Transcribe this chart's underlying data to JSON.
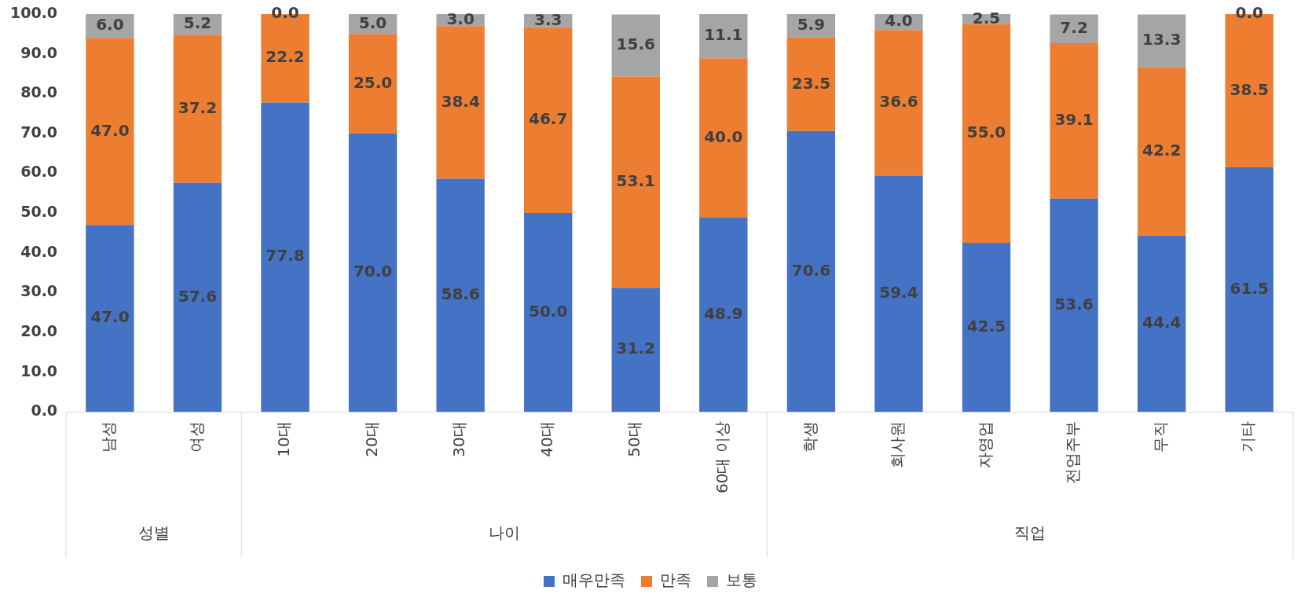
{
  "chart_data": {
    "type": "bar",
    "stacked": true,
    "categories": [
      "남성",
      "여성",
      "10대",
      "20대",
      "30대",
      "40대",
      "50대",
      "60대 이상",
      "학생",
      "회사원",
      "자영업",
      "전업주부",
      "무직",
      "기타"
    ],
    "series": [
      {
        "name": "매우만족",
        "color": "#4472c4",
        "values": [
          47.0,
          57.6,
          77.8,
          70.0,
          58.6,
          50.0,
          31.2,
          48.9,
          70.6,
          59.4,
          42.5,
          53.6,
          44.4,
          61.5
        ],
        "value_labels": [
          "47.0",
          "57.6",
          "77.8",
          "70.0",
          "58.6",
          "50.0",
          "31.2",
          "48.9",
          "70.6",
          "59.4",
          "42.5",
          "53.6",
          "44.4",
          "61.5"
        ]
      },
      {
        "name": "만족",
        "color": "#ed7d31",
        "values": [
          47.0,
          37.2,
          22.2,
          25.0,
          38.4,
          46.7,
          53.1,
          40.0,
          23.5,
          36.6,
          55.0,
          39.1,
          42.2,
          38.5
        ],
        "value_labels": [
          "47.0",
          "37.2",
          "22.2",
          "25.0",
          "38.4",
          "46.7",
          "53.1",
          "40.0",
          "23.5",
          "36.6",
          "55.0",
          "39.1",
          "42.2",
          "38.5"
        ]
      },
      {
        "name": "보통",
        "color": "#a5a5a5",
        "values": [
          6.0,
          5.2,
          0.0,
          5.0,
          3.0,
          3.3,
          15.6,
          11.1,
          5.9,
          4.0,
          2.5,
          7.2,
          13.3,
          0.0
        ],
        "value_labels": [
          "6.0",
          "5.2",
          "0.0",
          "5.0",
          "3.0",
          "3.3",
          "15.6",
          "11.1",
          "5.9",
          "4.0",
          "2.5",
          "7.2",
          "13.3",
          "0.0"
        ]
      }
    ],
    "ylim": [
      0,
      100
    ],
    "yticks": [
      {
        "value": 0,
        "label": "0.0"
      },
      {
        "value": 10,
        "label": "10.0"
      },
      {
        "value": 20,
        "label": "20.0"
      },
      {
        "value": 30,
        "label": "30.0"
      },
      {
        "value": 40,
        "label": "40.0"
      },
      {
        "value": 50,
        "label": "50.0"
      },
      {
        "value": 60,
        "label": "60.0"
      },
      {
        "value": 70,
        "label": "70.0"
      },
      {
        "value": 80,
        "label": "80.0"
      },
      {
        "value": 90,
        "label": "90.0"
      },
      {
        "value": 100,
        "label": "100.0"
      }
    ],
    "annotations": [
      "성별",
      "나이",
      "직업"
    ],
    "legend": "bottom"
  }
}
